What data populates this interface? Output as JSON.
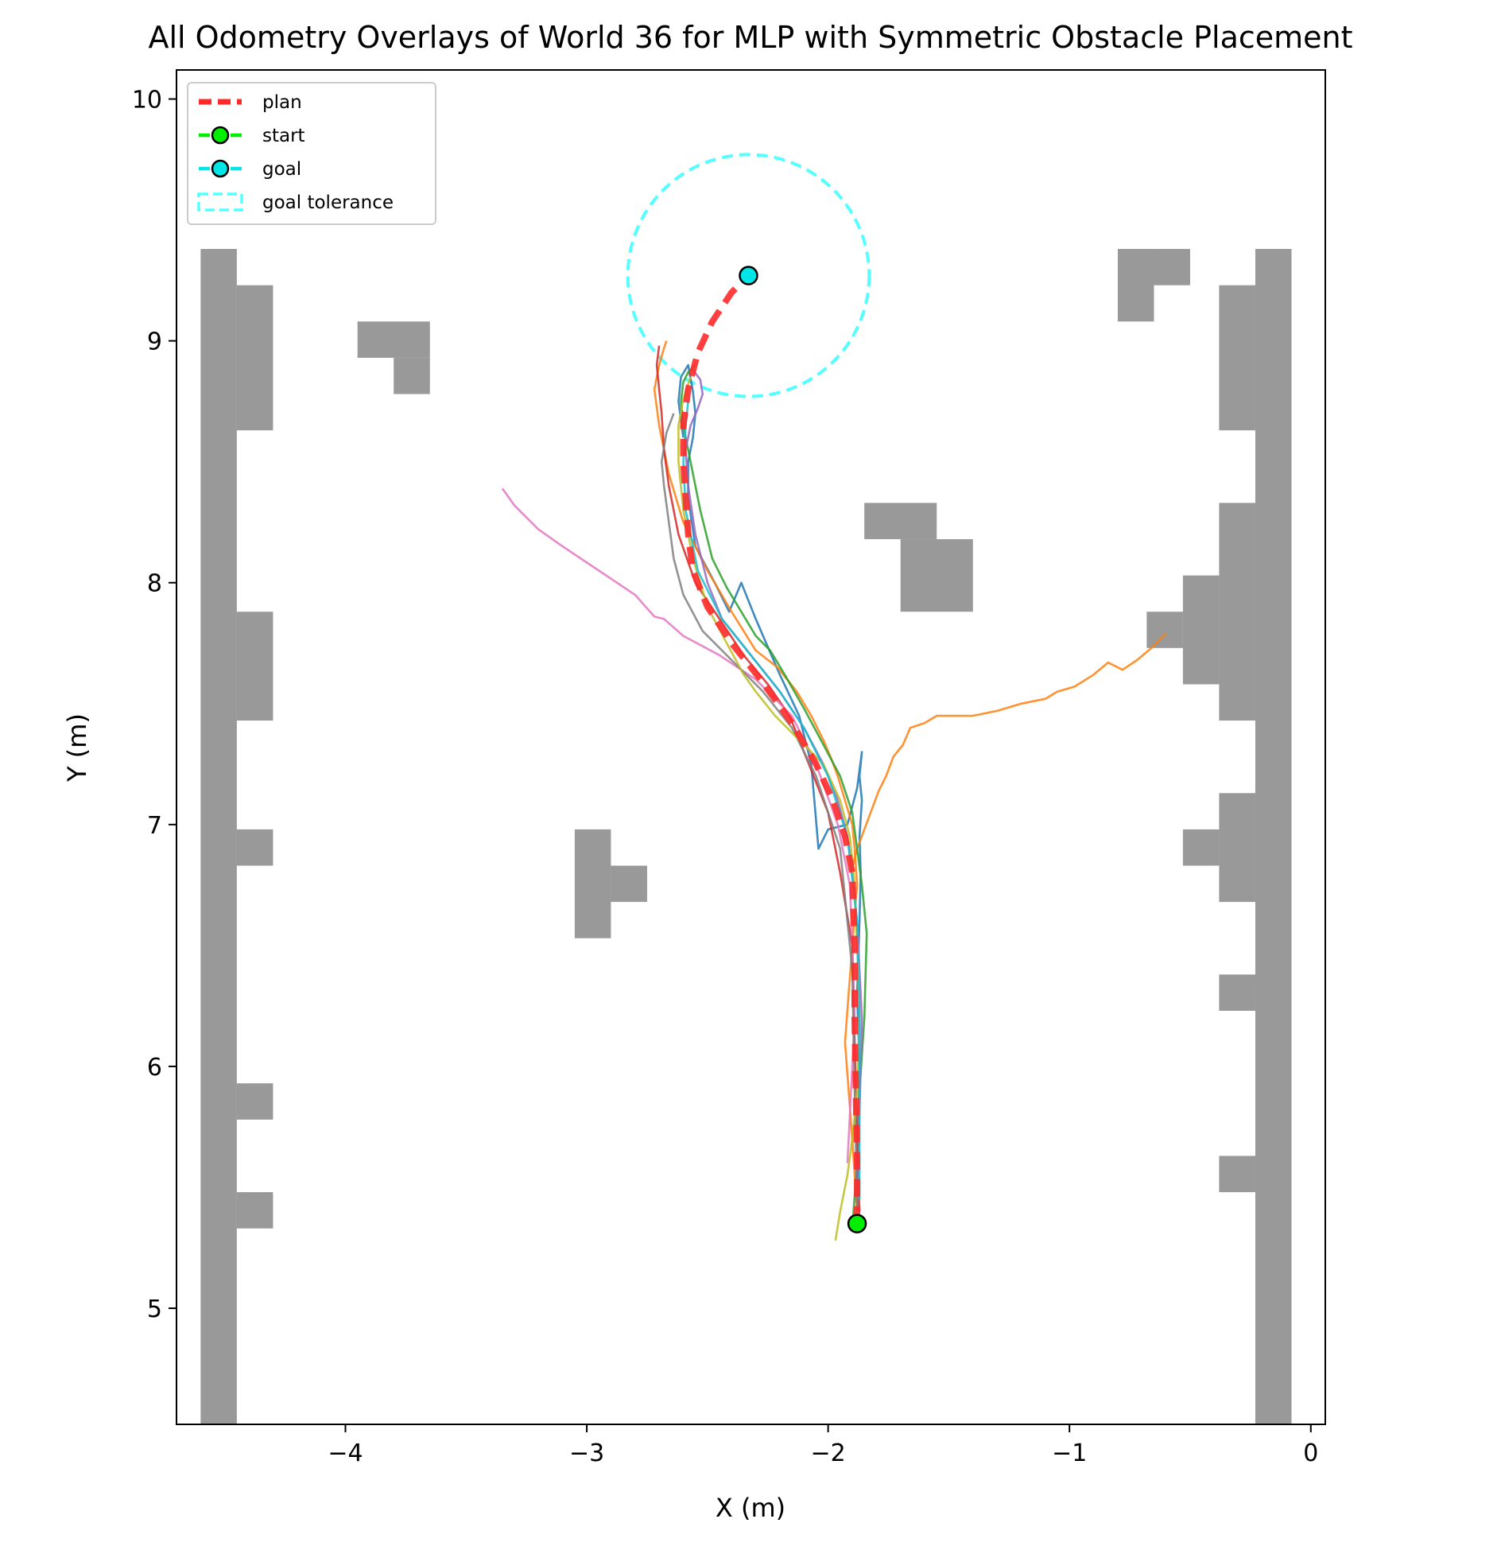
{
  "chart_data": {
    "type": "line",
    "title": "All Odometry Overlays of World 36 for MLP with Symmetric Obstacle Placement",
    "xlabel": "X (m)",
    "ylabel": "Y (m)",
    "xlim": [
      -4.7,
      0.06
    ],
    "ylim": [
      4.52,
      10.12
    ],
    "xticks": [
      -4,
      -3,
      -2,
      -1,
      0
    ],
    "yticks": [
      5,
      6,
      7,
      8,
      9,
      10
    ],
    "xtick_labels": [
      "−4",
      "−3",
      "−2",
      "−1",
      "0"
    ],
    "ytick_labels": [
      "5",
      "6",
      "7",
      "8",
      "9",
      "10"
    ],
    "grid": false,
    "legend": {
      "placement": "top-left",
      "entries": [
        {
          "label": "plan",
          "color": "#ff2a2a",
          "style": "dashed"
        },
        {
          "label": "start",
          "color": "#00ee00",
          "style": "marker"
        },
        {
          "label": "goal",
          "color": "#00e5e5",
          "style": "marker"
        },
        {
          "label": "goal tolerance",
          "color": "#55ffff",
          "style": "dashed-patch"
        }
      ]
    },
    "obstacle_color": "#999999",
    "obstacles": [
      [
        -4.6,
        4.52,
        -4.45,
        9.38
      ],
      [
        -4.45,
        8.63,
        -4.3,
        9.23
      ],
      [
        -4.45,
        7.43,
        -4.3,
        7.88
      ],
      [
        -4.45,
        6.83,
        -4.3,
        6.98
      ],
      [
        -4.45,
        5.78,
        -4.3,
        5.93
      ],
      [
        -4.45,
        5.33,
        -4.3,
        5.48
      ],
      [
        -3.95,
        8.93,
        -3.65,
        9.08
      ],
      [
        -3.8,
        8.78,
        -3.65,
        8.93
      ],
      [
        -3.05,
        6.53,
        -2.9,
        6.98
      ],
      [
        -2.9,
        6.68,
        -2.75,
        6.83
      ],
      [
        -1.85,
        8.18,
        -1.55,
        8.33
      ],
      [
        -1.7,
        7.88,
        -1.4,
        8.18
      ],
      [
        -0.8,
        9.08,
        -0.65,
        9.38
      ],
      [
        -0.65,
        9.23,
        -0.5,
        9.38
      ],
      [
        -0.23,
        4.52,
        -0.08,
        9.38
      ],
      [
        -0.38,
        8.63,
        -0.23,
        9.23
      ],
      [
        -0.38,
        7.43,
        -0.23,
        8.33
      ],
      [
        -0.53,
        7.58,
        -0.38,
        8.03
      ],
      [
        -0.68,
        7.73,
        -0.53,
        7.88
      ],
      [
        -0.38,
        6.68,
        -0.23,
        7.13
      ],
      [
        -0.53,
        6.83,
        -0.38,
        6.98
      ],
      [
        -0.38,
        6.23,
        -0.23,
        6.38
      ],
      [
        -0.38,
        5.48,
        -0.23,
        5.63
      ]
    ],
    "plan": {
      "name": "plan",
      "color": "#ff2a2a",
      "x": [
        -1.88,
        -1.88,
        -1.885,
        -1.89,
        -1.89,
        -1.9,
        -1.93,
        -1.98,
        -2.05,
        -2.15,
        -2.28,
        -2.4,
        -2.5,
        -2.56,
        -2.58,
        -2.59,
        -2.6,
        -2.6,
        -2.58,
        -2.54,
        -2.48,
        -2.4,
        -2.33
      ],
      "y": [
        5.35,
        5.6,
        5.9,
        6.2,
        6.5,
        6.8,
        6.95,
        7.1,
        7.25,
        7.42,
        7.6,
        7.75,
        7.9,
        8.05,
        8.2,
        8.35,
        8.5,
        8.65,
        8.8,
        8.95,
        9.08,
        9.2,
        9.27
      ]
    },
    "start": {
      "name": "start",
      "x": -1.88,
      "y": 5.35,
      "color": "#00ee00"
    },
    "goal": {
      "name": "goal",
      "x": -2.33,
      "y": 9.27,
      "color": "#00e5e5"
    },
    "goal_tolerance": {
      "name": "goal tolerance",
      "x": -2.33,
      "y": 9.27,
      "radius": 0.5,
      "color": "#55ffff"
    },
    "series": [
      {
        "color": "#1f77b4",
        "x": [
          -1.88,
          -1.875,
          -1.87,
          -1.88,
          -1.87,
          -1.865,
          -1.87,
          -1.86,
          -1.87,
          -1.86,
          -1.88,
          -1.92,
          -2.0,
          -2.04,
          -2.07,
          -2.12,
          -2.2,
          -2.3,
          -2.36,
          -2.41,
          -2.47,
          -2.55,
          -2.58,
          -2.58,
          -2.56,
          -2.55,
          -2.56,
          -2.58,
          -2.61,
          -2.62,
          -2.6
        ],
        "y": [
          5.4,
          5.7,
          6.0,
          6.3,
          6.6,
          6.8,
          6.95,
          7.1,
          7.2,
          7.3,
          7.15,
          7.0,
          6.98,
          6.9,
          7.25,
          7.45,
          7.62,
          7.85,
          8.0,
          7.88,
          8.0,
          8.15,
          8.35,
          8.5,
          8.6,
          8.7,
          8.79,
          8.9,
          8.85,
          8.75,
          8.6
        ]
      },
      {
        "color": "#ff7f0e",
        "x": [
          -1.88,
          -1.9,
          -1.93,
          -1.9,
          -1.88,
          -1.89,
          -1.9,
          -1.93,
          -1.96,
          -1.99,
          -2.02,
          -2.07,
          -2.13,
          -2.21,
          -2.3,
          -2.4,
          -2.5,
          -2.6,
          -2.66,
          -2.7,
          -2.72,
          -2.7,
          -2.68,
          -2.67
        ],
        "y": [
          5.4,
          5.7,
          6.1,
          6.5,
          6.75,
          6.9,
          7.0,
          7.1,
          7.2,
          7.28,
          7.35,
          7.45,
          7.55,
          7.65,
          7.72,
          7.88,
          8.05,
          8.25,
          8.45,
          8.65,
          8.8,
          8.9,
          8.97,
          9.0
        ]
      },
      {
        "color": "#ff7f0e",
        "x": [
          -1.9,
          -1.88,
          -1.85,
          -1.82,
          -1.79,
          -1.76,
          -1.73,
          -1.69,
          -1.66,
          -1.6,
          -1.55,
          -1.5,
          -1.4,
          -1.3,
          -1.2,
          -1.1,
          -1.05,
          -0.98,
          -0.9,
          -0.84,
          -0.78,
          -0.72,
          -0.66,
          -0.6
        ],
        "y": [
          6.82,
          6.9,
          6.98,
          7.06,
          7.14,
          7.2,
          7.28,
          7.33,
          7.4,
          7.42,
          7.45,
          7.45,
          7.45,
          7.47,
          7.5,
          7.52,
          7.55,
          7.57,
          7.62,
          7.67,
          7.64,
          7.68,
          7.73,
          7.79
        ]
      },
      {
        "color": "#2ca02c",
        "x": [
          -1.9,
          -1.88,
          -1.87,
          -1.85,
          -1.84,
          -1.86,
          -1.88,
          -1.9,
          -1.95,
          -2.03,
          -2.1,
          -2.18,
          -2.24,
          -2.3,
          -2.36,
          -2.42,
          -2.48,
          -2.53,
          -2.57,
          -2.6,
          -2.61,
          -2.6,
          -2.58,
          -2.55
        ],
        "y": [
          5.33,
          5.6,
          5.9,
          6.2,
          6.55,
          6.75,
          6.9,
          7.05,
          7.2,
          7.35,
          7.48,
          7.62,
          7.72,
          7.78,
          7.88,
          7.98,
          8.1,
          8.3,
          8.5,
          8.65,
          8.75,
          8.83,
          8.87,
          8.9
        ]
      },
      {
        "color": "#d62728",
        "x": [
          -1.87,
          -1.88,
          -1.89,
          -1.9,
          -1.95,
          -2.0,
          -2.08,
          -2.16,
          -2.25,
          -2.35,
          -2.45,
          -2.55,
          -2.62,
          -2.66,
          -2.68,
          -2.69,
          -2.7,
          -2.71,
          -2.7
        ],
        "y": [
          5.4,
          5.7,
          6.1,
          6.5,
          6.8,
          7.05,
          7.25,
          7.45,
          7.58,
          7.7,
          7.85,
          8.0,
          8.2,
          8.4,
          8.55,
          8.7,
          8.8,
          8.9,
          8.98
        ]
      },
      {
        "color": "#9467bd",
        "x": [
          -1.88,
          -1.87,
          -1.86,
          -1.88,
          -1.9,
          -1.92,
          -1.96,
          -2.02,
          -2.1,
          -2.2,
          -2.28,
          -2.36,
          -2.44,
          -2.5,
          -2.55,
          -2.58,
          -2.59,
          -2.57,
          -2.54,
          -2.52,
          -2.53,
          -2.56
        ],
        "y": [
          5.4,
          5.8,
          6.2,
          6.6,
          6.8,
          6.95,
          7.1,
          7.25,
          7.4,
          7.55,
          7.65,
          7.75,
          7.85,
          8.0,
          8.2,
          8.4,
          8.55,
          8.65,
          8.72,
          8.78,
          8.84,
          8.88
        ]
      },
      {
        "color": "#e377c2",
        "x": [
          -1.92,
          -1.91,
          -1.9,
          -1.89,
          -1.9,
          -1.91,
          -1.96,
          -2.05,
          -2.15,
          -2.3,
          -2.45,
          -2.6,
          -2.68,
          -2.72,
          -2.8,
          -2.95,
          -3.1,
          -3.2,
          -3.3,
          -3.35
        ],
        "y": [
          5.6,
          5.8,
          6.0,
          6.2,
          6.5,
          6.75,
          7.0,
          7.25,
          7.45,
          7.6,
          7.7,
          7.78,
          7.85,
          7.86,
          7.95,
          8.05,
          8.15,
          8.22,
          8.32,
          8.39
        ]
      },
      {
        "color": "#7f7f7f",
        "x": [
          -1.88,
          -1.89,
          -1.9,
          -1.95,
          -2.05,
          -2.15,
          -2.27,
          -2.4,
          -2.52,
          -2.6,
          -2.64,
          -2.66,
          -2.68,
          -2.69,
          -2.67,
          -2.64
        ],
        "y": [
          5.4,
          5.9,
          6.4,
          6.9,
          7.2,
          7.4,
          7.55,
          7.68,
          7.8,
          7.95,
          8.1,
          8.25,
          8.4,
          8.5,
          8.62,
          8.7
        ]
      },
      {
        "color": "#bcbd22",
        "x": [
          -1.97,
          -1.95,
          -1.92,
          -1.9,
          -1.88,
          -1.87,
          -1.88,
          -1.89,
          -1.91,
          -1.95,
          -2.02,
          -2.12,
          -2.22,
          -2.3,
          -2.35,
          -2.42,
          -2.5,
          -2.56,
          -2.6,
          -2.62,
          -2.62,
          -2.6,
          -2.57
        ],
        "y": [
          5.28,
          5.4,
          5.55,
          5.7,
          5.9,
          6.2,
          6.5,
          6.75,
          6.95,
          7.1,
          7.25,
          7.35,
          7.45,
          7.55,
          7.62,
          7.75,
          7.9,
          8.1,
          8.3,
          8.5,
          8.65,
          8.76,
          8.85
        ]
      },
      {
        "color": "#17becf",
        "x": [
          -1.87,
          -1.87,
          -1.87,
          -1.88,
          -1.92,
          -2.0,
          -2.1,
          -2.2,
          -2.32,
          -2.44,
          -2.54,
          -2.59,
          -2.6,
          -2.59,
          -2.58
        ],
        "y": [
          5.45,
          5.8,
          6.2,
          6.6,
          6.95,
          7.2,
          7.4,
          7.55,
          7.7,
          7.85,
          8.05,
          8.3,
          8.5,
          8.65,
          8.75
        ]
      }
    ]
  }
}
